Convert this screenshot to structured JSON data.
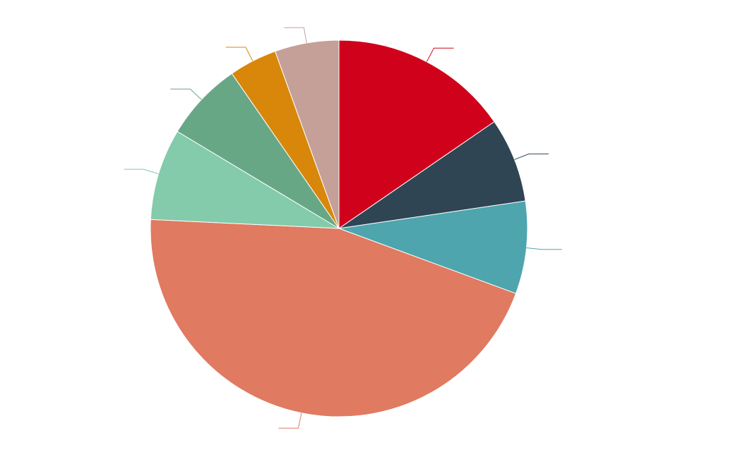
{
  "chart_data": {
    "type": "pie",
    "title": "",
    "legend": "none",
    "label_style": "callouts with leader lines (label text blurred/illegible in source)",
    "start_angle_deg": 0,
    "direction": "clockwise",
    "slices": [
      {
        "name": "",
        "value": 15.7,
        "color": "#d0021b"
      },
      {
        "name": "",
        "value": 7.4,
        "color": "#2f4554"
      },
      {
        "name": "",
        "value": 8.1,
        "color": "#4ea5ad"
      },
      {
        "name": "",
        "value": 46.0,
        "color": "#e07a61"
      },
      {
        "name": "",
        "value": 8.0,
        "color": "#83cbaa"
      },
      {
        "name": "",
        "value": 6.9,
        "color": "#68a786"
      },
      {
        "name": "",
        "value": 4.2,
        "color": "#d8870b"
      },
      {
        "name": "",
        "value": 5.6,
        "color": "#c4a098"
      }
    ]
  }
}
